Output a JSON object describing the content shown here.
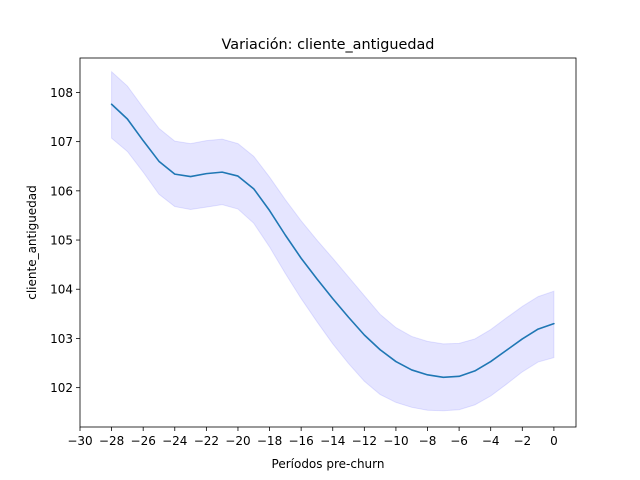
{
  "chart_data": {
    "type": "line",
    "title": "Variación: cliente_antiguedad",
    "xlabel": "Períodos pre-churn",
    "ylabel": "cliente_antiguedad",
    "xlim": [
      -30,
      1.4
    ],
    "ylim": [
      101.2,
      108.7
    ],
    "x_ticks": [
      -30,
      -28,
      -26,
      -24,
      -22,
      -20,
      -18,
      -16,
      -14,
      -12,
      -10,
      -8,
      -6,
      -4,
      -2,
      0
    ],
    "x_tick_labels": [
      "−30",
      "−28",
      "−26",
      "−24",
      "−22",
      "−20",
      "−18",
      "−16",
      "−14",
      "−12",
      "−10",
      "−8",
      "−6",
      "−4",
      "−2",
      "0"
    ],
    "y_ticks": [
      102,
      103,
      104,
      105,
      106,
      107,
      108
    ],
    "y_tick_labels": [
      "102",
      "103",
      "104",
      "105",
      "106",
      "107",
      "108"
    ],
    "grid": false,
    "line_color": "#1f77b4",
    "band_color": "#0000ff",
    "series": [
      {
        "x": [
          -28,
          -27,
          -26,
          -25,
          -24,
          -23,
          -22,
          -21,
          -20,
          -19,
          -18,
          -17,
          -16,
          -15,
          -14,
          -13,
          -12,
          -11,
          -10,
          -9,
          -8,
          -7,
          -6,
          -5,
          -4,
          -3,
          -2,
          -1,
          0
        ],
        "y": [
          107.76,
          107.46,
          107.02,
          106.6,
          106.34,
          106.29,
          106.35,
          106.38,
          106.3,
          106.04,
          105.6,
          105.1,
          104.63,
          104.21,
          103.81,
          103.43,
          103.07,
          102.77,
          102.53,
          102.36,
          102.26,
          102.21,
          102.23,
          102.34,
          102.53,
          102.76,
          102.99,
          103.19,
          103.3
        ],
        "ci_lower": [
          107.07,
          106.8,
          106.38,
          105.93,
          105.68,
          105.62,
          105.67,
          105.72,
          105.63,
          105.34,
          104.86,
          104.32,
          103.81,
          103.34,
          102.89,
          102.49,
          102.13,
          101.86,
          101.7,
          101.6,
          101.54,
          101.53,
          101.55,
          101.65,
          101.83,
          102.07,
          102.32,
          102.52,
          102.61
        ],
        "ci_upper": [
          108.42,
          108.13,
          107.69,
          107.27,
          107.01,
          106.96,
          107.02,
          107.05,
          106.96,
          106.7,
          106.28,
          105.82,
          105.39,
          105.0,
          104.63,
          104.25,
          103.87,
          103.49,
          103.22,
          103.04,
          102.94,
          102.89,
          102.9,
          102.99,
          103.18,
          103.42,
          103.65,
          103.85,
          103.96
        ]
      }
    ]
  }
}
